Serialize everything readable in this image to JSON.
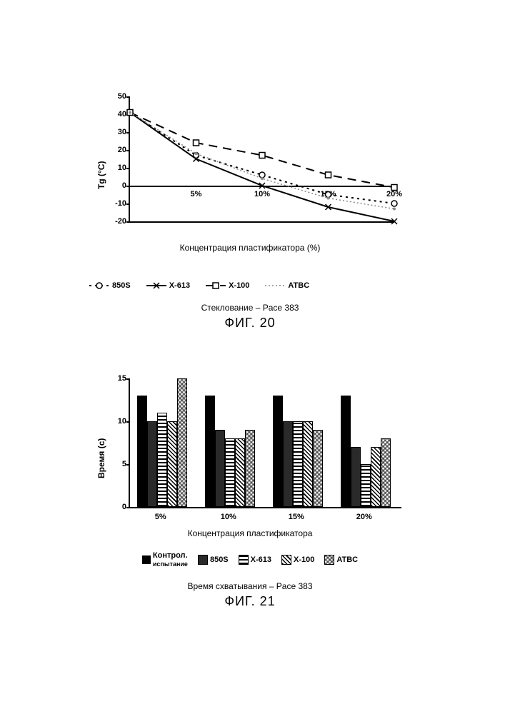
{
  "fig20": {
    "type": "line",
    "ylabel": "Tg (°C)",
    "xlabel": "Концентрация пластификатора (%)",
    "ylim": [
      -20,
      50
    ],
    "ytick_step": 10,
    "yticks": [
      50,
      40,
      30,
      20,
      10,
      0,
      -10,
      -20
    ],
    "xlim": [
      0,
      20
    ],
    "xticks_label": [
      "5%",
      "10%",
      "15%",
      "20%"
    ],
    "xticks_pos": [
      5,
      10,
      15,
      20
    ],
    "background_color": "#ffffff",
    "series": [
      {
        "name": "850S",
        "legend_label": "850S",
        "legend_prefix": "- Ө -",
        "marker": "circle-open",
        "line_style": "dotted",
        "line_width": 2,
        "color": "#000000",
        "x": [
          0,
          5,
          10,
          15,
          20
        ],
        "y": [
          41,
          17,
          6,
          -5,
          -10
        ]
      },
      {
        "name": "X-613",
        "legend_label": "X-613",
        "legend_prefix": "✕",
        "marker": "x",
        "line_style": "solid",
        "line_width": 2,
        "color": "#000000",
        "x": [
          0,
          5,
          10,
          15,
          20
        ],
        "y": [
          41,
          15,
          0,
          -12,
          -20
        ]
      },
      {
        "name": "X-100",
        "legend_label": "X-100",
        "legend_prefix": "□",
        "marker": "square-open",
        "line_style": "dashed",
        "line_width": 2,
        "color": "#000000",
        "x": [
          0,
          5,
          10,
          15,
          20
        ],
        "y": [
          41,
          24,
          17,
          6,
          -1
        ]
      },
      {
        "name": "ATBC",
        "legend_label": "ATBC",
        "legend_prefix": "·",
        "marker": "dot",
        "line_style": "dotted-fine",
        "line_width": 1.5,
        "color": "#888888",
        "x": [
          0,
          5,
          10,
          15,
          20
        ],
        "y": [
          41,
          18,
          4,
          -7,
          -13
        ]
      }
    ],
    "subtitle": "Стеклование – Pace 383",
    "caption": "ФИГ. 20"
  },
  "fig21": {
    "type": "bar",
    "ylabel": "Время (с)",
    "xlabel": "Концентрация пластификатора",
    "ylim": [
      0,
      15
    ],
    "ytick_step": 5,
    "yticks": [
      15,
      10,
      5,
      0
    ],
    "categories": [
      "5%",
      "10%",
      "15%",
      "20%"
    ],
    "series": [
      {
        "name": "Контрол. испытание",
        "pattern": "solid-black",
        "values": [
          13,
          13,
          13,
          13
        ],
        "legend_label": "Контрол.",
        "legend_sub": "испытание"
      },
      {
        "name": "850S",
        "pattern": "solid-dark",
        "values": [
          10,
          9,
          10,
          7
        ],
        "legend_label": "850S"
      },
      {
        "name": "X-613",
        "pattern": "hstripes",
        "values": [
          11,
          8,
          10,
          5
        ],
        "legend_label": "X-613"
      },
      {
        "name": "X-100",
        "pattern": "diag",
        "values": [
          10,
          8,
          10,
          7
        ],
        "legend_label": "X-100"
      },
      {
        "name": "ATBC",
        "pattern": "zigzag",
        "values": [
          15,
          9,
          9,
          8
        ],
        "legend_label": "ATBC"
      }
    ],
    "bar_colors": {
      "solid-black": "#000000",
      "solid-dark": "#2a2a2a"
    },
    "background_color": "#ffffff",
    "subtitle": "Время схватывания –  Pace 383",
    "caption": "ФИГ. 21"
  }
}
